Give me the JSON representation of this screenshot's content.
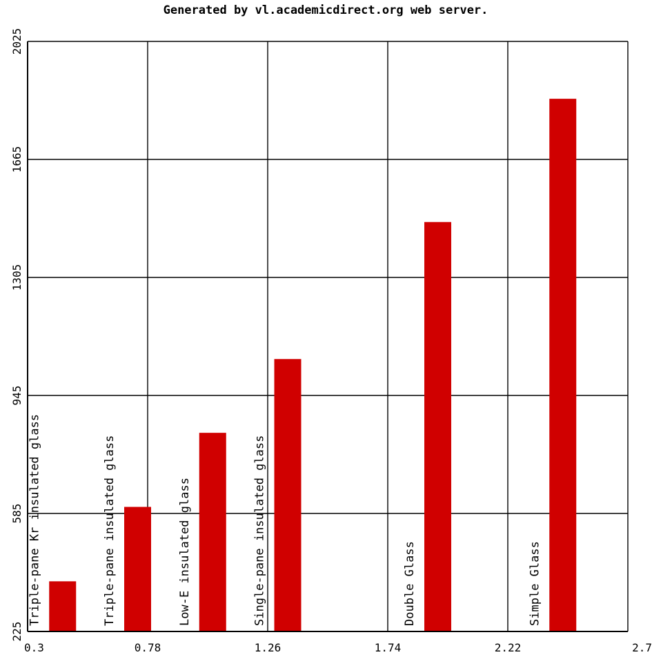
{
  "title": "Generated by vl.academicdirect.org web server.",
  "colors": {
    "bar": "#d00000",
    "grid": "#000000",
    "background": "#ffffff"
  },
  "chart_data": {
    "type": "bar",
    "title": "Generated by vl.academicdirect.org web server.",
    "xlabel": "",
    "ylabel": "",
    "xlim": [
      0.3,
      2.7
    ],
    "ylim": [
      225,
      2025
    ],
    "x_ticks": [
      "0.3",
      "0.78",
      "1.26",
      "1.74",
      "2.22",
      "2.7"
    ],
    "y_ticks": [
      "225",
      "585",
      "945",
      "1305",
      "1665",
      "2025"
    ],
    "grid": true,
    "series": [
      {
        "values": [
          {
            "label": "Triple-pane Kr insulated glass",
            "x": 0.44,
            "y": 378
          },
          {
            "label": "Triple-pane insulated glass",
            "x": 0.74,
            "y": 605
          },
          {
            "label": "Low-E insulated glass",
            "x": 1.04,
            "y": 831
          },
          {
            "label": "Single-pane insulated glass",
            "x": 1.34,
            "y": 1056
          },
          {
            "label": "Double Glass",
            "x": 1.94,
            "y": 1474
          },
          {
            "label": "Simple Glass",
            "x": 2.44,
            "y": 1850
          }
        ]
      }
    ]
  }
}
